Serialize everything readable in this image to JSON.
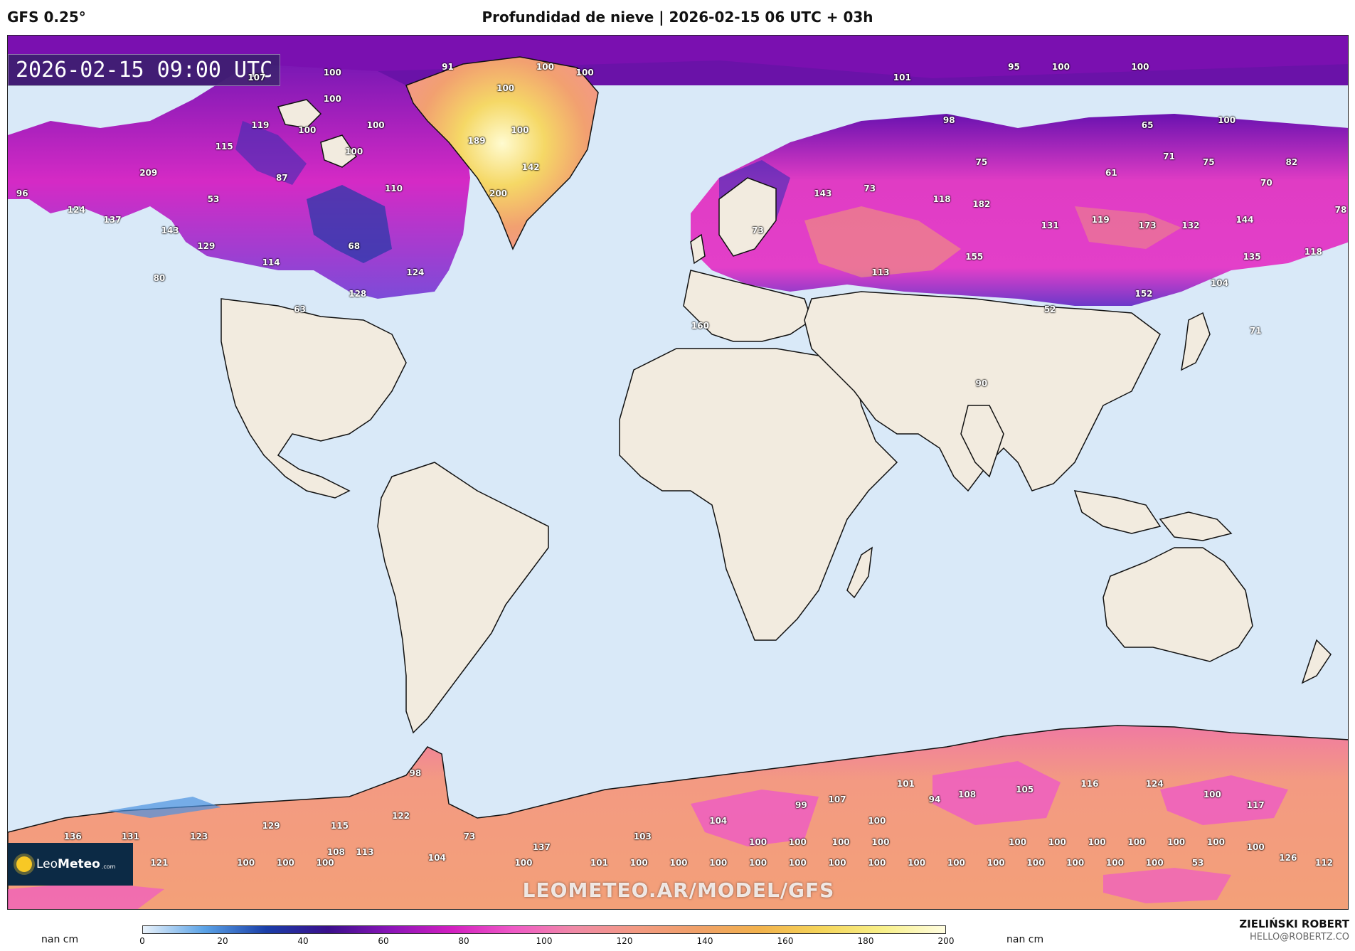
{
  "header": {
    "model": "GFS 0.25°",
    "title": "Profundidad de nieve | 2026-02-15 06 UTC + 03h"
  },
  "map": {
    "valid_time": "2026-02-15 09:00 UTC",
    "watermark": "LEOMETEO.AR/MODEL/GFS",
    "logo": {
      "name_light": "Leo",
      "name_bold": "Meteo",
      "suffix": ".com"
    },
    "labels": [
      {
        "v": "107",
        "lon": -113,
        "lat": 80
      },
      {
        "v": "100",
        "lon": -92,
        "lat": 81
      },
      {
        "v": "91",
        "lon": -60,
        "lat": 82
      },
      {
        "v": "100",
        "lon": -33,
        "lat": 82
      },
      {
        "v": "100",
        "lon": -22,
        "lat": 81
      },
      {
        "v": "100",
        "lon": -44,
        "lat": 78
      },
      {
        "v": "100",
        "lon": -92,
        "lat": 76
      },
      {
        "v": "100",
        "lon": -80,
        "lat": 71
      },
      {
        "v": "100",
        "lon": -40,
        "lat": 70
      },
      {
        "v": "119",
        "lon": -112,
        "lat": 71
      },
      {
        "v": "100",
        "lon": -99,
        "lat": 70
      },
      {
        "v": "189",
        "lon": -52,
        "lat": 68
      },
      {
        "v": "115",
        "lon": -122,
        "lat": 67
      },
      {
        "v": "100",
        "lon": -86,
        "lat": 66
      },
      {
        "v": "142",
        "lon": -37,
        "lat": 63
      },
      {
        "v": "209",
        "lon": -143,
        "lat": 62
      },
      {
        "v": "87",
        "lon": -106,
        "lat": 61
      },
      {
        "v": "110",
        "lon": -75,
        "lat": 59
      },
      {
        "v": "200",
        "lon": -46,
        "lat": 58
      },
      {
        "v": "96",
        "lon": -178,
        "lat": 58
      },
      {
        "v": "53",
        "lon": -125,
        "lat": 57
      },
      {
        "v": "124",
        "lon": -163,
        "lat": 55
      },
      {
        "v": "137",
        "lon": -153,
        "lat": 53
      },
      {
        "v": "143",
        "lon": -137,
        "lat": 51
      },
      {
        "v": "129",
        "lon": -127,
        "lat": 48
      },
      {
        "v": "68",
        "lon": -86,
        "lat": 48
      },
      {
        "v": "114",
        "lon": -109,
        "lat": 45
      },
      {
        "v": "124",
        "lon": -69,
        "lat": 43
      },
      {
        "v": "80",
        "lon": -140,
        "lat": 42
      },
      {
        "v": "128",
        "lon": -85,
        "lat": 39
      },
      {
        "v": "63",
        "lon": -101,
        "lat": 36
      },
      {
        "v": "160",
        "lon": 10,
        "lat": 33
      },
      {
        "v": "90",
        "lon": 88,
        "lat": 22
      },
      {
        "v": "101",
        "lon": 66,
        "lat": 80
      },
      {
        "v": "95",
        "lon": 97,
        "lat": 82
      },
      {
        "v": "100",
        "lon": 110,
        "lat": 82
      },
      {
        "v": "100",
        "lon": 132,
        "lat": 82
      },
      {
        "v": "98",
        "lon": 79,
        "lat": 72
      },
      {
        "v": "65",
        "lon": 134,
        "lat": 71
      },
      {
        "v": "100",
        "lon": 156,
        "lat": 72
      },
      {
        "v": "71",
        "lon": 140,
        "lat": 65
      },
      {
        "v": "75",
        "lon": 88,
        "lat": 64
      },
      {
        "v": "75",
        "lon": 151,
        "lat": 64
      },
      {
        "v": "82",
        "lon": 174,
        "lat": 64
      },
      {
        "v": "61",
        "lon": 124,
        "lat": 62
      },
      {
        "v": "70",
        "lon": 167,
        "lat": 60
      },
      {
        "v": "143",
        "lon": 44,
        "lat": 58
      },
      {
        "v": "73",
        "lon": 57,
        "lat": 59
      },
      {
        "v": "118",
        "lon": 77,
        "lat": 57
      },
      {
        "v": "182",
        "lon": 88,
        "lat": 56
      },
      {
        "v": "131",
        "lon": 107,
        "lat": 52
      },
      {
        "v": "119",
        "lon": 121,
        "lat": 53
      },
      {
        "v": "173",
        "lon": 134,
        "lat": 52
      },
      {
        "v": "132",
        "lon": 146,
        "lat": 52
      },
      {
        "v": "144",
        "lon": 161,
        "lat": 53
      },
      {
        "v": "78",
        "lon": 188,
        "lat": 55
      },
      {
        "v": "73",
        "lon": 26,
        "lat": 51
      },
      {
        "v": "118",
        "lon": 180,
        "lat": 47
      },
      {
        "v": "155",
        "lon": 86,
        "lat": 46
      },
      {
        "v": "135",
        "lon": 163,
        "lat": 46
      },
      {
        "v": "113",
        "lon": 60,
        "lat": 43
      },
      {
        "v": "104",
        "lon": 154,
        "lat": 41
      },
      {
        "v": "152",
        "lon": 133,
        "lat": 39
      },
      {
        "v": "52",
        "lon": 107,
        "lat": 36
      },
      {
        "v": "71",
        "lon": 164,
        "lat": 32
      },
      {
        "v": "98",
        "lon": -69,
        "lat": -52
      },
      {
        "v": "101",
        "lon": 67,
        "lat": -54
      },
      {
        "v": "116",
        "lon": 118,
        "lat": -54
      },
      {
        "v": "124",
        "lon": 136,
        "lat": -54
      },
      {
        "v": "105",
        "lon": 100,
        "lat": -55
      },
      {
        "v": "108",
        "lon": 84,
        "lat": -56
      },
      {
        "v": "100",
        "lon": 152,
        "lat": -56
      },
      {
        "v": "94",
        "lon": 75,
        "lat": -57
      },
      {
        "v": "107",
        "lon": 48,
        "lat": -57
      },
      {
        "v": "99",
        "lon": 38,
        "lat": -58
      },
      {
        "v": "117",
        "lon": 164,
        "lat": -58
      },
      {
        "v": "122",
        "lon": -73,
        "lat": -60
      },
      {
        "v": "104",
        "lon": 15,
        "lat": -61
      },
      {
        "v": "100",
        "lon": 59,
        "lat": -61
      },
      {
        "v": "129",
        "lon": -109,
        "lat": -62
      },
      {
        "v": "115",
        "lon": -90,
        "lat": -62
      },
      {
        "v": "136",
        "lon": -164,
        "lat": -64
      },
      {
        "v": "131",
        "lon": -148,
        "lat": -64
      },
      {
        "v": "123",
        "lon": -129,
        "lat": -64
      },
      {
        "v": "73",
        "lon": -54,
        "lat": -64
      },
      {
        "v": "103",
        "lon": -6,
        "lat": -64
      },
      {
        "v": "100",
        "lon": 26,
        "lat": -65
      },
      {
        "v": "100",
        "lon": 37,
        "lat": -65
      },
      {
        "v": "100",
        "lon": 49,
        "lat": -65
      },
      {
        "v": "100",
        "lon": 60,
        "lat": -65
      },
      {
        "v": "100",
        "lon": 98,
        "lat": -65
      },
      {
        "v": "100",
        "lon": 109,
        "lat": -65
      },
      {
        "v": "100",
        "lon": 120,
        "lat": -65
      },
      {
        "v": "100",
        "lon": 131,
        "lat": -65
      },
      {
        "v": "100",
        "lon": 142,
        "lat": -65
      },
      {
        "v": "100",
        "lon": 153,
        "lat": -65
      },
      {
        "v": "137",
        "lon": -34,
        "lat": -66
      },
      {
        "v": "100",
        "lon": 164,
        "lat": -66
      },
      {
        "v": "108",
        "lon": -91,
        "lat": -67
      },
      {
        "v": "113",
        "lon": -83,
        "lat": -67
      },
      {
        "v": "101",
        "lon": -158,
        "lat": -68
      },
      {
        "v": "104",
        "lon": -63,
        "lat": -68
      },
      {
        "v": "126",
        "lon": 173,
        "lat": -68
      },
      {
        "v": "99",
        "lon": -172,
        "lat": -69
      },
      {
        "v": "121",
        "lon": -140,
        "lat": -69
      },
      {
        "v": "100",
        "lon": -116,
        "lat": -69
      },
      {
        "v": "100",
        "lon": -105,
        "lat": -69
      },
      {
        "v": "100",
        "lon": -94,
        "lat": -69
      },
      {
        "v": "100",
        "lon": -39,
        "lat": -69
      },
      {
        "v": "101",
        "lon": -18,
        "lat": -69
      },
      {
        "v": "100",
        "lon": -7,
        "lat": -69
      },
      {
        "v": "100",
        "lon": 4,
        "lat": -69
      },
      {
        "v": "100",
        "lon": 15,
        "lat": -69
      },
      {
        "v": "100",
        "lon": 26,
        "lat": -69
      },
      {
        "v": "100",
        "lon": 37,
        "lat": -69
      },
      {
        "v": "100",
        "lon": 48,
        "lat": -69
      },
      {
        "v": "100",
        "lon": 59,
        "lat": -69
      },
      {
        "v": "100",
        "lon": 70,
        "lat": -69
      },
      {
        "v": "100",
        "lon": 81,
        "lat": -69
      },
      {
        "v": "100",
        "lon": 92,
        "lat": -69
      },
      {
        "v": "100",
        "lon": 103,
        "lat": -69
      },
      {
        "v": "100",
        "lon": 114,
        "lat": -69
      },
      {
        "v": "100",
        "lon": 125,
        "lat": -69
      },
      {
        "v": "100",
        "lon": 136,
        "lat": -69
      },
      {
        "v": "53",
        "lon": 148,
        "lat": -69
      },
      {
        "v": "112",
        "lon": 183,
        "lat": -69
      }
    ]
  },
  "colorbar": {
    "min": 0,
    "max": 200,
    "ticks": [
      "0",
      "20",
      "40",
      "60",
      "80",
      "100",
      "120",
      "140",
      "160",
      "180",
      "200"
    ],
    "unit_left": "nan cm",
    "unit_right": "nan cm",
    "colors": [
      "#e9f2fb",
      "#5aa2e6",
      "#1a3ea8",
      "#3a0f8c",
      "#8a14b8",
      "#d21fc0",
      "#ef59c6",
      "#f08aa6",
      "#f39a82",
      "#f0a068",
      "#f2b24c",
      "#f5d55a",
      "#f8f08a",
      "#fffde0"
    ]
  },
  "credits": {
    "name": "ZIELIŃSKI ROBERT",
    "email": "HELLO@ROBERTZ.CO"
  },
  "palette": {
    "ocean": "#d9e9f8",
    "land": "#f2ebdf",
    "coast": "#111111"
  }
}
